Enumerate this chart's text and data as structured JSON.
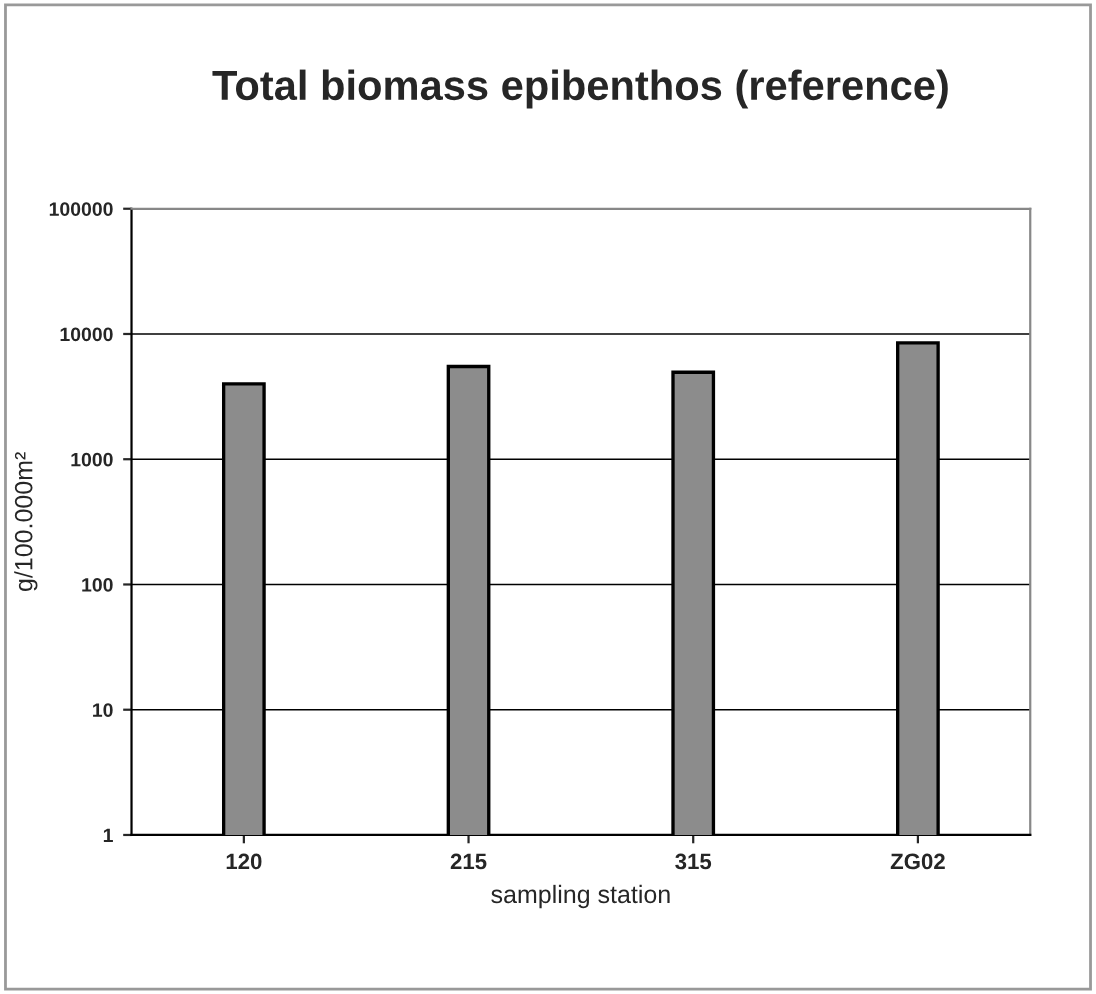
{
  "chart_data": {
    "type": "bar",
    "title": "Total biomass epibenthos (reference)",
    "xlabel": "sampling station",
    "ylabel": "g/100.000m²",
    "categories": [
      "120",
      "215",
      "315",
      "ZG02"
    ],
    "values": [
      4000,
      5500,
      4950,
      8500
    ],
    "color": "#8c8c8c",
    "log": "y",
    "ylim": [
      1,
      100000
    ],
    "yticks": [
      1,
      10,
      100,
      1000,
      10000,
      100000
    ],
    "grid": "y"
  }
}
